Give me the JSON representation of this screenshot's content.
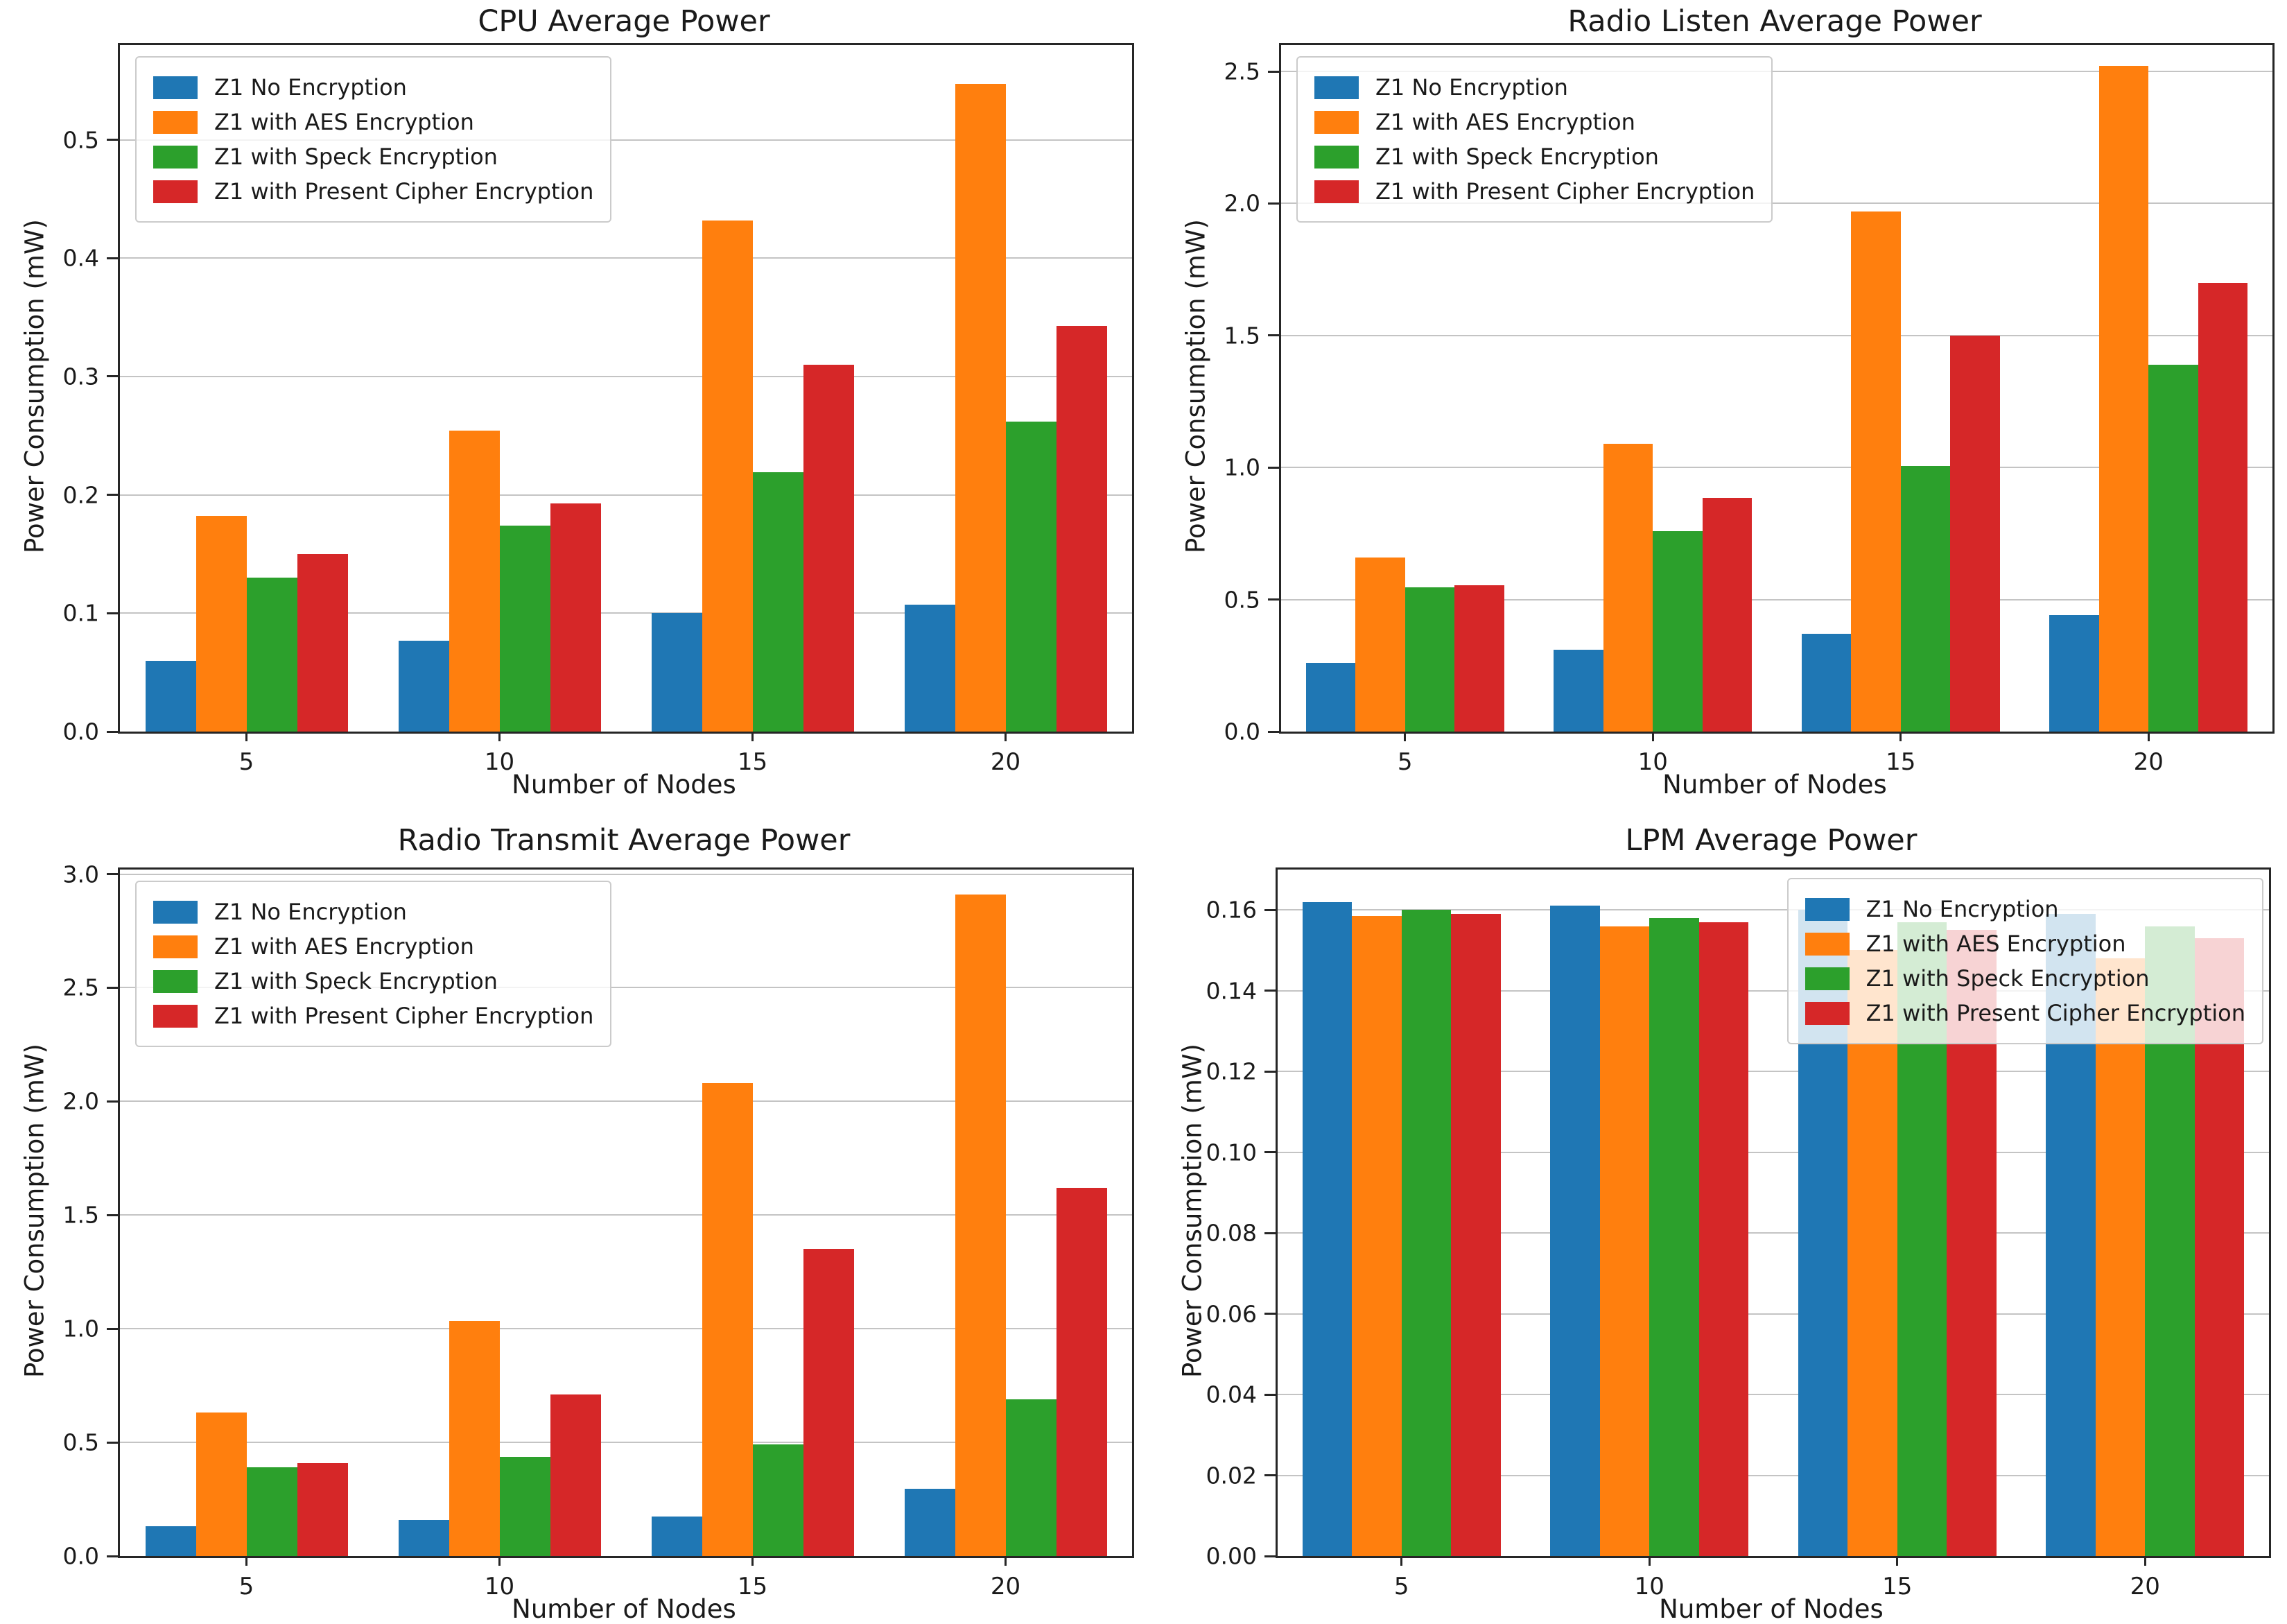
{
  "figure": {
    "background": "#ffffff",
    "text_color": "#1a1a1a",
    "grid_color": "#c4c4c4",
    "spine_color": "#262626"
  },
  "palette": {
    "blue": "#1f77b4",
    "orange": "#ff7f0e",
    "green": "#2ca02c",
    "red": "#d62728"
  },
  "chart_data": [
    {
      "type": "bar",
      "title": "CPU Average Power",
      "xlabel": "Number of Nodes",
      "ylabel": "Power Consumption (mW)",
      "categories": [
        "5",
        "10",
        "15",
        "20"
      ],
      "series": [
        {
          "name": "Z1 No Encryption",
          "color": "#1f77b4",
          "values": [
            0.06,
            0.077,
            0.1,
            0.107
          ]
        },
        {
          "name": "Z1 with AES Encryption",
          "color": "#ff7f0e",
          "values": [
            0.182,
            0.254,
            0.432,
            0.547
          ]
        },
        {
          "name": "Z1 with Speck Encryption",
          "color": "#2ca02c",
          "values": [
            0.13,
            0.174,
            0.219,
            0.262
          ]
        },
        {
          "name": "Z1 with Present Cipher Encryption",
          "color": "#d62728",
          "values": [
            0.15,
            0.193,
            0.31,
            0.343
          ]
        }
      ],
      "ylim": [
        0,
        0.58
      ],
      "ytick_values": [
        0,
        0.1,
        0.2,
        0.3,
        0.4,
        0.5
      ],
      "ytick_labels": [
        "0.0",
        "0.1",
        "0.2",
        "0.3",
        "0.4",
        "0.5"
      ],
      "grid": true,
      "legend_position": "upper left"
    },
    {
      "type": "bar",
      "title": "Radio Listen Average Power",
      "xlabel": "Number of Nodes",
      "ylabel": "Power Consumption (mW)",
      "categories": [
        "5",
        "10",
        "15",
        "20"
      ],
      "series": [
        {
          "name": "Z1 No Encryption",
          "color": "#1f77b4",
          "values": [
            0.26,
            0.31,
            0.37,
            0.44
          ]
        },
        {
          "name": "Z1 with AES Encryption",
          "color": "#ff7f0e",
          "values": [
            0.66,
            1.09,
            1.97,
            2.52
          ]
        },
        {
          "name": "Z1 with Speck Encryption",
          "color": "#2ca02c",
          "values": [
            0.545,
            0.76,
            1.005,
            1.39
          ]
        },
        {
          "name": "Z1 with Present Cipher Encryption",
          "color": "#d62728",
          "values": [
            0.555,
            0.885,
            1.5,
            1.7
          ]
        }
      ],
      "ylim": [
        0,
        2.6
      ],
      "ytick_values": [
        0,
        0.5,
        1.0,
        1.5,
        2.0,
        2.5
      ],
      "ytick_labels": [
        "0.0",
        "0.5",
        "1.0",
        "1.5",
        "2.0",
        "2.5"
      ],
      "grid": true,
      "legend_position": "upper left"
    },
    {
      "type": "bar",
      "title": "Radio Transmit Average Power",
      "xlabel": "Number of Nodes",
      "ylabel": "Power Consumption (mW)",
      "categories": [
        "5",
        "10",
        "15",
        "20"
      ],
      "series": [
        {
          "name": "Z1 No Encryption",
          "color": "#1f77b4",
          "values": [
            0.13,
            0.16,
            0.175,
            0.295
          ]
        },
        {
          "name": "Z1 with AES Encryption",
          "color": "#ff7f0e",
          "values": [
            0.63,
            1.035,
            2.08,
            2.91
          ]
        },
        {
          "name": "Z1 with Speck Encryption",
          "color": "#2ca02c",
          "values": [
            0.39,
            0.435,
            0.49,
            0.69
          ]
        },
        {
          "name": "Z1 with Present Cipher Encryption",
          "color": "#d62728",
          "values": [
            0.41,
            0.71,
            1.35,
            1.62
          ]
        }
      ],
      "ylim": [
        0,
        3.02
      ],
      "ytick_values": [
        0,
        0.5,
        1.0,
        1.5,
        2.0,
        2.5,
        3.0
      ],
      "ytick_labels": [
        "0.0",
        "0.5",
        "1.0",
        "1.5",
        "2.0",
        "2.5",
        "3.0"
      ],
      "grid": true,
      "legend_position": "upper left"
    },
    {
      "type": "bar",
      "title": "LPM Average Power",
      "xlabel": "Number of Nodes",
      "ylabel": "Power Consumption (mW)",
      "categories": [
        "5",
        "10",
        "15",
        "20"
      ],
      "series": [
        {
          "name": "Z1 No Encryption",
          "color": "#1f77b4",
          "values": [
            0.162,
            0.161,
            0.16,
            0.159
          ]
        },
        {
          "name": "Z1 with AES Encryption",
          "color": "#ff7f0e",
          "values": [
            0.1585,
            0.156,
            0.15,
            0.148
          ]
        },
        {
          "name": "Z1 with Speck Encryption",
          "color": "#2ca02c",
          "values": [
            0.16,
            0.158,
            0.157,
            0.156
          ]
        },
        {
          "name": "Z1 with Present Cipher Encryption",
          "color": "#d62728",
          "values": [
            0.159,
            0.157,
            0.155,
            0.153
          ]
        }
      ],
      "ylim": [
        0,
        0.17
      ],
      "ytick_values": [
        0,
        0.02,
        0.04,
        0.06,
        0.08,
        0.1,
        0.12,
        0.14,
        0.16
      ],
      "ytick_labels": [
        "0.00",
        "0.02",
        "0.04",
        "0.06",
        "0.08",
        "0.10",
        "0.12",
        "0.14",
        "0.16"
      ],
      "grid": true,
      "legend_position": "upper right"
    }
  ]
}
